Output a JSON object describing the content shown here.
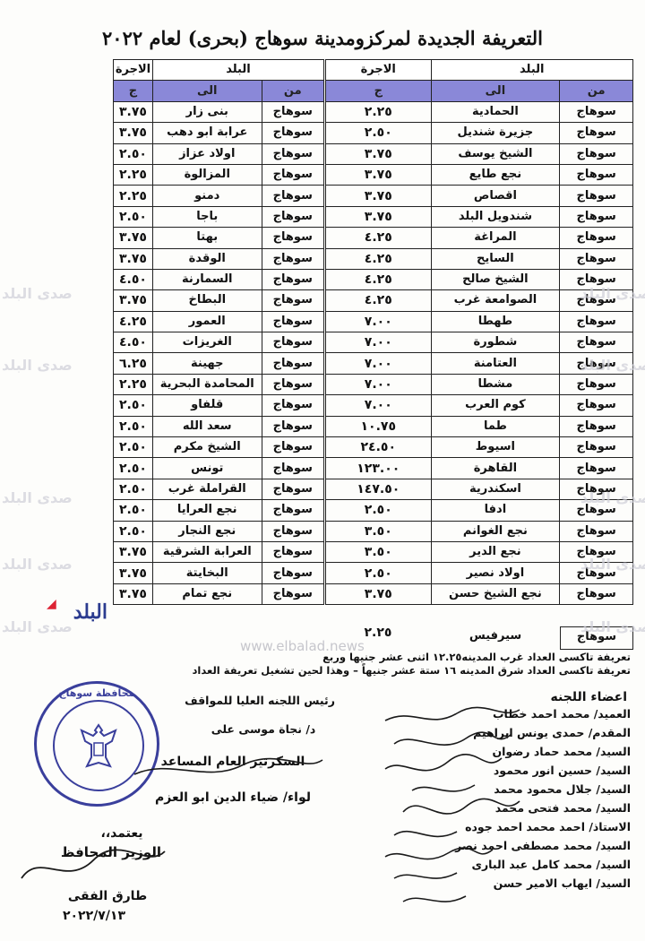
{
  "title": "التعريفة الجديدة لمركزومدينة سوهاج (بحرى) لعام ٢٠٢٢",
  "headers": {
    "town": "البلد",
    "fare": "الاجرة",
    "from": "من",
    "to": "الى",
    "currency": "ج"
  },
  "right_rows": [
    {
      "from": "سوهاج",
      "to": "الحمادية",
      "fare": "٢.٢٥"
    },
    {
      "from": "سوهاج",
      "to": "جزيرة شنديل",
      "fare": "٢.٥٠"
    },
    {
      "from": "سوهاج",
      "to": "الشيخ يوسف",
      "fare": "٣.٧٥"
    },
    {
      "from": "سوهاج",
      "to": "نجع طايع",
      "fare": "٣.٧٥"
    },
    {
      "from": "سوهاج",
      "to": "اقصاص",
      "fare": "٣.٧٥"
    },
    {
      "from": "سوهاج",
      "to": "شندويل البلد",
      "fare": "٣.٧٥"
    },
    {
      "from": "سوهاج",
      "to": "المراغة",
      "fare": "٤.٢٥"
    },
    {
      "from": "سوهاج",
      "to": "السايح",
      "fare": "٤.٢٥"
    },
    {
      "from": "سوهاج",
      "to": "الشيخ صالح",
      "fare": "٤.٢٥"
    },
    {
      "from": "سوهاج",
      "to": "الصوامعة غرب",
      "fare": "٤.٢٥"
    },
    {
      "from": "سوهاج",
      "to": "طهطا",
      "fare": "٧.٠٠"
    },
    {
      "from": "سوهاج",
      "to": "شطورة",
      "fare": "٧.٠٠"
    },
    {
      "from": "سوهاج",
      "to": "العتامنة",
      "fare": "٧.٠٠"
    },
    {
      "from": "سوهاج",
      "to": "مشطا",
      "fare": "٧.٠٠"
    },
    {
      "from": "سوهاج",
      "to": "كوم العرب",
      "fare": "٧.٠٠"
    },
    {
      "from": "سوهاج",
      "to": "طما",
      "fare": "١٠.٧٥"
    },
    {
      "from": "سوهاج",
      "to": "اسيوط",
      "fare": "٢٤.٥٠"
    },
    {
      "from": "سوهاج",
      "to": "القاهرة",
      "fare": "١٢٣.٠٠"
    },
    {
      "from": "سوهاج",
      "to": "اسكندرية",
      "fare": "١٤٧.٥٠"
    },
    {
      "from": "سوهاج",
      "to": "ادفا",
      "fare": "٢.٥٠"
    },
    {
      "from": "سوهاج",
      "to": "نجع الغوانم",
      "fare": "٣.٥٠"
    },
    {
      "from": "سوهاج",
      "to": "نجع الدير",
      "fare": "٣.٥٠"
    },
    {
      "from": "سوهاج",
      "to": "اولاد نصير",
      "fare": "٢.٥٠"
    },
    {
      "from": "سوهاج",
      "to": "نجع الشيخ حسن",
      "fare": "٣.٧٥"
    }
  ],
  "right_extra": {
    "from": "سوهاج",
    "to": "سيرفيس",
    "fare": "٢.٢٥"
  },
  "left_rows": [
    {
      "from": "سوهاج",
      "to": "بنى زار",
      "fare": "٣.٧٥"
    },
    {
      "from": "سوهاج",
      "to": "عرابة ابو دهب",
      "fare": "٣.٧٥"
    },
    {
      "from": "سوهاج",
      "to": "اولاد عزاز",
      "fare": "٢.٥٠"
    },
    {
      "from": "سوهاج",
      "to": "المزالوة",
      "fare": "٢.٢٥"
    },
    {
      "from": "سوهاج",
      "to": "دمنو",
      "fare": "٢.٢٥"
    },
    {
      "from": "سوهاج",
      "to": "باجا",
      "fare": "٢.٥٠"
    },
    {
      "from": "سوهاج",
      "to": "بهتا",
      "fare": "٣.٧٥"
    },
    {
      "from": "سوهاج",
      "to": "الوقدة",
      "fare": "٣.٧٥"
    },
    {
      "from": "سوهاج",
      "to": "السمارنة",
      "fare": "٤.٥٠"
    },
    {
      "from": "سوهاج",
      "to": "البطاخ",
      "fare": "٣.٧٥"
    },
    {
      "from": "سوهاج",
      "to": "العمور",
      "fare": "٤.٢٥"
    },
    {
      "from": "سوهاج",
      "to": "الغريزات",
      "fare": "٤.٥٠"
    },
    {
      "from": "سوهاج",
      "to": "جهينة",
      "fare": "٦.٢٥"
    },
    {
      "from": "سوهاج",
      "to": "المحامدة البحرية",
      "fare": "٢.٢٥"
    },
    {
      "from": "سوهاج",
      "to": "قلفاو",
      "fare": "٢.٥٠"
    },
    {
      "from": "سوهاج",
      "to": "سعد الله",
      "fare": "٢.٥٠"
    },
    {
      "from": "سوهاج",
      "to": "الشيخ مكرم",
      "fare": "٢.٥٠"
    },
    {
      "from": "سوهاج",
      "to": "تونس",
      "fare": "٢.٥٠"
    },
    {
      "from": "سوهاج",
      "to": "القراملة غرب",
      "fare": "٢.٥٠"
    },
    {
      "from": "سوهاج",
      "to": "نجع العرايا",
      "fare": "٢.٥٠"
    },
    {
      "from": "سوهاج",
      "to": "نجع النجار",
      "fare": "٢.٥٠"
    },
    {
      "from": "سوهاج",
      "to": "العرابة الشرقية",
      "fare": "٣.٧٥"
    },
    {
      "from": "سوهاج",
      "to": "البخايتة",
      "fare": "٣.٧٥"
    },
    {
      "from": "سوهاج",
      "to": "نجع تمام",
      "fare": "٣.٧٥"
    }
  ],
  "notes": [
    "تعريفة تاكسى العداد غرب المدينه١٢.٢٥ اثنى عشر جنيها وربع",
    "تعريفة تاكسى العداد شرق المدينه ١٦ ستة عشر جنيهاً – وهذا لحين تشغيل تعريفة العداد"
  ],
  "members_title": "اعضاء اللجنه",
  "members": [
    "العميد/ محمد احمد خطاب",
    "المقدم/ حمدى يونس ابراهيم",
    "السيد/ محمد حماد رضوان",
    "السيد/ حسين انور محمود",
    "السيد/ جلال محمود محمد",
    "السيد/ محمد فتحى محمد",
    "الاستاذ/ احمد محمد احمد جوده",
    "السيد/ محمد مصطفى احمد نصر",
    "السيد/ محمد كامل عبد البارى",
    "السيد/ ايهاب الامير حسن"
  ],
  "committee_head": "رئيس اللجنه العليا للمواقف",
  "committee_head_name": "د/ نجاة موسى على",
  "secretary_title": "السكرتير العام المساعد",
  "secretary_name": "لواء/ ضياء الدين ابو العزم",
  "approval": "يعتمد،،",
  "governor_title": "الوزير المحافظ",
  "governor_name": "طارق الفقى",
  "governor_date": "٢٠٢٢/٧/١٣",
  "seal_text": "محافظة سوهاج",
  "logo_text": "البلد",
  "watermark_text": "صدى البلد",
  "site_text": "www.elbalad.news",
  "colors": {
    "header_band": "#8a88d8",
    "seal": "#3a3f9c",
    "logo": "#2b3b8f"
  }
}
